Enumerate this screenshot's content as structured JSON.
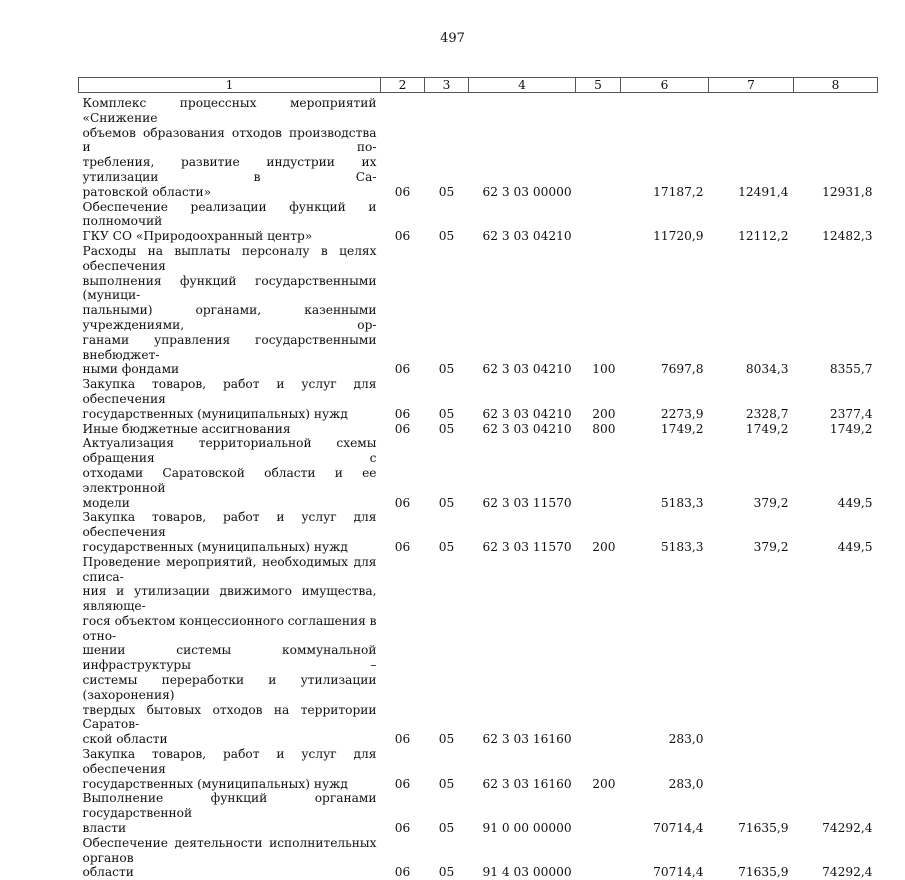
{
  "page_number": "497",
  "table": {
    "headers": [
      "1",
      "2",
      "3",
      "4",
      "5",
      "6",
      "7",
      "8"
    ],
    "rows": [
      {
        "desc": [
          "Комплекс процессных мероприятий «Снижение",
          "объемов образования отходов производства и по-",
          "требления, развитие индустрии их утилизации в Са-",
          "ратовской области»"
        ],
        "c2": "06",
        "c3": "05",
        "c4": "62 3 03 00000",
        "c5": "",
        "c6": "17187,2",
        "c7": "12491,4",
        "c8": "12931,8"
      },
      {
        "desc": [
          "Обеспечение реализации функций и полномочий",
          "ГКУ СО «Природоохранный центр»"
        ],
        "c2": "06",
        "c3": "05",
        "c4": "62 3 03 04210",
        "c5": "",
        "c6": "11720,9",
        "c7": "12112,2",
        "c8": "12482,3"
      },
      {
        "desc": [
          "Расходы на выплаты персоналу в целях обеспечения",
          "выполнения функций государственными (муници-",
          "пальными) органами, казенными учреждениями, ор-",
          "ганами управления государственными внебюджет-",
          "ными фондами"
        ],
        "c2": "06",
        "c3": "05",
        "c4": "62 3 03 04210",
        "c5": "100",
        "c6": "7697,8",
        "c7": "8034,3",
        "c8": "8355,7"
      },
      {
        "desc": [
          "Закупка товаров, работ и услуг для обеспечения",
          "государственных (муниципальных) нужд"
        ],
        "c2": "06",
        "c3": "05",
        "c4": "62 3 03 04210",
        "c5": "200",
        "c6": "2273,9",
        "c7": "2328,7",
        "c8": "2377,4"
      },
      {
        "desc": [
          "Иные бюджетные ассигнования"
        ],
        "c2": "06",
        "c3": "05",
        "c4": "62 3 03 04210",
        "c5": "800",
        "c6": "1749,2",
        "c7": "1749,2",
        "c8": "1749,2"
      },
      {
        "desc": [
          "Актуализация территориальной схемы обращения с",
          "отходами Саратовской области и ее электронной",
          "модели"
        ],
        "c2": "06",
        "c3": "05",
        "c4": "62 3 03 11570",
        "c5": "",
        "c6": "5183,3",
        "c7": "379,2",
        "c8": "449,5"
      },
      {
        "desc": [
          "Закупка товаров, работ и услуг для обеспечения",
          "государственных (муниципальных) нужд"
        ],
        "c2": "06",
        "c3": "05",
        "c4": "62 3 03 11570",
        "c5": "200",
        "c6": "5183,3",
        "c7": "379,2",
        "c8": "449,5"
      },
      {
        "desc": [
          "Проведение мероприятий, необходимых для списа-",
          "ния и утилизации движимого имущества, являюще-",
          "гося объектом концессионного соглашения в отно-",
          "шении системы коммунальной инфраструктуры –",
          "системы переработки и утилизации (захоронения)",
          "твердых бытовых отходов на территории Саратов-",
          "ской области"
        ],
        "c2": "06",
        "c3": "05",
        "c4": "62 3 03 16160",
        "c5": "",
        "c6": "283,0",
        "c7": "",
        "c8": ""
      },
      {
        "desc": [
          "Закупка товаров, работ и услуг для обеспечения",
          "государственных (муниципальных) нужд"
        ],
        "c2": "06",
        "c3": "05",
        "c4": "62 3 03 16160",
        "c5": "200",
        "c6": "283,0",
        "c7": "",
        "c8": ""
      },
      {
        "desc": [
          "Выполнение функций органами государственной",
          "власти"
        ],
        "c2": "06",
        "c3": "05",
        "c4": "91 0 00 00000",
        "c5": "",
        "c6": "70714,4",
        "c7": "71635,9",
        "c8": "74292,4"
      },
      {
        "desc": [
          "Обеспечение деятельности исполнительных органов",
          "области"
        ],
        "c2": "06",
        "c3": "05",
        "c4": "91 4 03 00000",
        "c5": "",
        "c6": "70714,4",
        "c7": "71635,9",
        "c8": "74292,4"
      }
    ]
  }
}
